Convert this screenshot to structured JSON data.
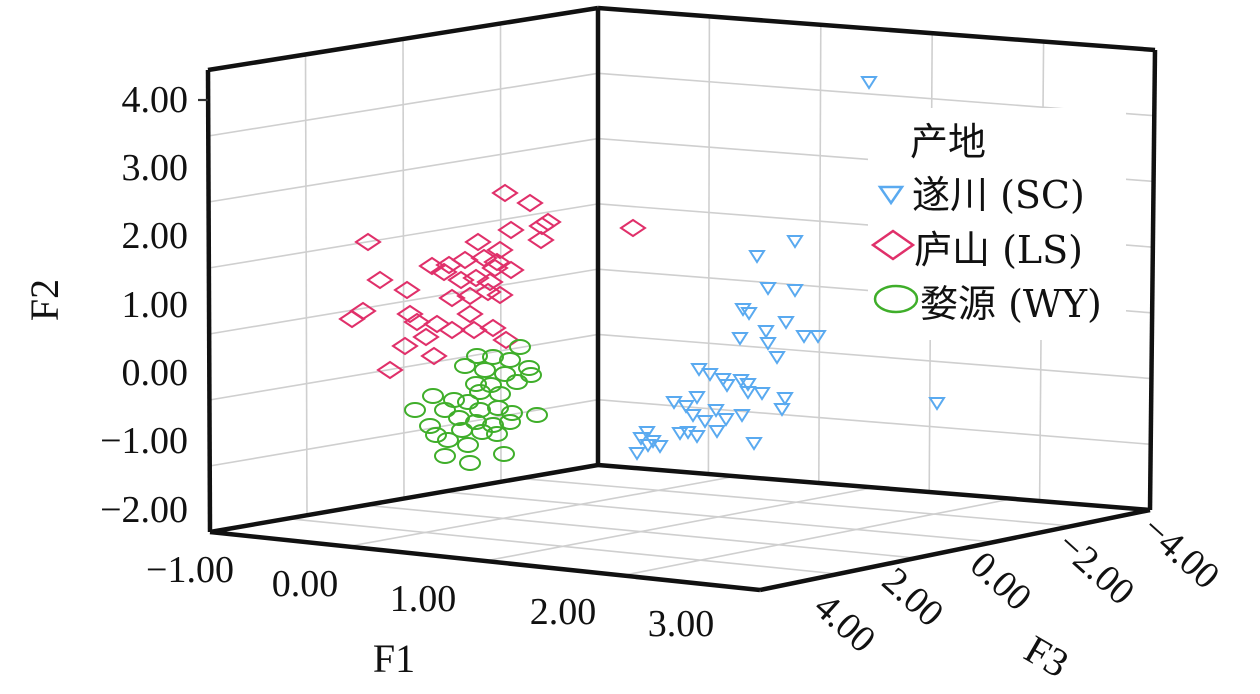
{
  "chart_data": {
    "type": "scatter3d",
    "axes": {
      "F1": {
        "label": "F1",
        "ticks": [
          "−1.00",
          "0.00",
          "1.00",
          "2.00",
          "3.00"
        ],
        "range": [
          -1,
          3
        ]
      },
      "F2": {
        "label": "F2",
        "ticks": [
          "4.00",
          "3.00",
          "2.00",
          "1.00",
          "0.00",
          "−1.00",
          "−2.00"
        ],
        "range": [
          -2,
          4
        ]
      },
      "F3": {
        "label": "F3",
        "ticks": [
          "4.00",
          "2.00",
          "0.00",
          "−2.00",
          "−4.00"
        ],
        "range": [
          -4,
          4
        ]
      }
    },
    "grid": true,
    "legend": {
      "title": "产地",
      "position": "top-right",
      "entries": [
        {
          "label": "遂川 (SC)",
          "marker": "triangle-down",
          "color": "#5aaaf0"
        },
        {
          "label": "庐山 (LS)",
          "marker": "diamond",
          "color": "#e0306a"
        },
        {
          "label": "婺源 (WY)",
          "marker": "circle",
          "color": "#3fae2a"
        }
      ]
    },
    "series": [
      {
        "name": "遂川 (SC)",
        "marker": "triangle-down",
        "color": "#5aaaf0",
        "points": [
          [
            869,
            82
          ],
          [
            795,
            241
          ],
          [
            757,
            256
          ],
          [
            768,
            288
          ],
          [
            795,
            290
          ],
          [
            743,
            309
          ],
          [
            749,
            313
          ],
          [
            786,
            322
          ],
          [
            766,
            331
          ],
          [
            804,
            336
          ],
          [
            818,
            336
          ],
          [
            740,
            338
          ],
          [
            768,
            343
          ],
          [
            777,
            357
          ],
          [
            699,
            369
          ],
          [
            710,
            374
          ],
          [
            723,
            379
          ],
          [
            741,
            380
          ],
          [
            748,
            384
          ],
          [
            697,
            397
          ],
          [
            727,
            385
          ],
          [
            748,
            392
          ],
          [
            762,
            393
          ],
          [
            785,
            398
          ],
          [
            782,
            409
          ],
          [
            716,
            410
          ],
          [
            742,
            415
          ],
          [
            686,
            406
          ],
          [
            674,
            402
          ],
          [
            693,
            415
          ],
          [
            726,
            419
          ],
          [
            705,
            421
          ],
          [
            647,
            432
          ],
          [
            688,
            432
          ],
          [
            717,
            431
          ],
          [
            697,
            436
          ],
          [
            680,
            433
          ],
          [
            653,
            441
          ],
          [
            641,
            438
          ],
          [
            648,
            445
          ],
          [
            660,
            446
          ],
          [
            754,
            443
          ],
          [
            637,
            453
          ],
          [
            937,
            403
          ]
        ]
      },
      {
        "name": "庐山 (LS)",
        "marker": "diamond",
        "color": "#e0306a",
        "points": [
          [
            505,
            193
          ],
          [
            530,
            203
          ],
          [
            548,
            222
          ],
          [
            542,
            226
          ],
          [
            368,
            242
          ],
          [
            511,
            230
          ],
          [
            541,
            240
          ],
          [
            633,
            228
          ],
          [
            478,
            242
          ],
          [
            500,
            250
          ],
          [
            465,
            260
          ],
          [
            484,
            258
          ],
          [
            497,
            262
          ],
          [
            449,
            265
          ],
          [
            432,
            266
          ],
          [
            444,
            272
          ],
          [
            495,
            268
          ],
          [
            511,
            270
          ],
          [
            461,
            280
          ],
          [
            476,
            278
          ],
          [
            490,
            282
          ],
          [
            380,
            280
          ],
          [
            407,
            290
          ],
          [
            470,
            296
          ],
          [
            452,
            298
          ],
          [
            488,
            292
          ],
          [
            500,
            295
          ],
          [
            363,
            311
          ],
          [
            352,
            319
          ],
          [
            410,
            314
          ],
          [
            417,
            322
          ],
          [
            437,
            324
          ],
          [
            470,
            314
          ],
          [
            452,
            330
          ],
          [
            474,
            330
          ],
          [
            493,
            328
          ],
          [
            426,
            337
          ],
          [
            506,
            340
          ],
          [
            405,
            346
          ],
          [
            434,
            356
          ],
          [
            390,
            370
          ]
        ]
      },
      {
        "name": "婺源 (WY)",
        "marker": "circle",
        "color": "#3fae2a",
        "points": [
          [
            520,
            347
          ],
          [
            477,
            356
          ],
          [
            493,
            357
          ],
          [
            510,
            360
          ],
          [
            465,
            366
          ],
          [
            485,
            370
          ],
          [
            529,
            368
          ],
          [
            505,
            374
          ],
          [
            476,
            384
          ],
          [
            491,
            385
          ],
          [
            531,
            375
          ],
          [
            517,
            382
          ],
          [
            480,
            392
          ],
          [
            500,
            394
          ],
          [
            433,
            396
          ],
          [
            454,
            400
          ],
          [
            468,
            402
          ],
          [
            415,
            410
          ],
          [
            480,
            410
          ],
          [
            498,
            408
          ],
          [
            512,
            413
          ],
          [
            537,
            415
          ],
          [
            445,
            410
          ],
          [
            459,
            418
          ],
          [
            476,
            422
          ],
          [
            493,
            425
          ],
          [
            510,
            422
          ],
          [
            430,
            426
          ],
          [
            462,
            430
          ],
          [
            482,
            432
          ],
          [
            497,
            434
          ],
          [
            436,
            435
          ],
          [
            448,
            440
          ],
          [
            468,
            445
          ],
          [
            445,
            456
          ],
          [
            470,
            463
          ],
          [
            504,
            454
          ]
        ]
      }
    ]
  }
}
